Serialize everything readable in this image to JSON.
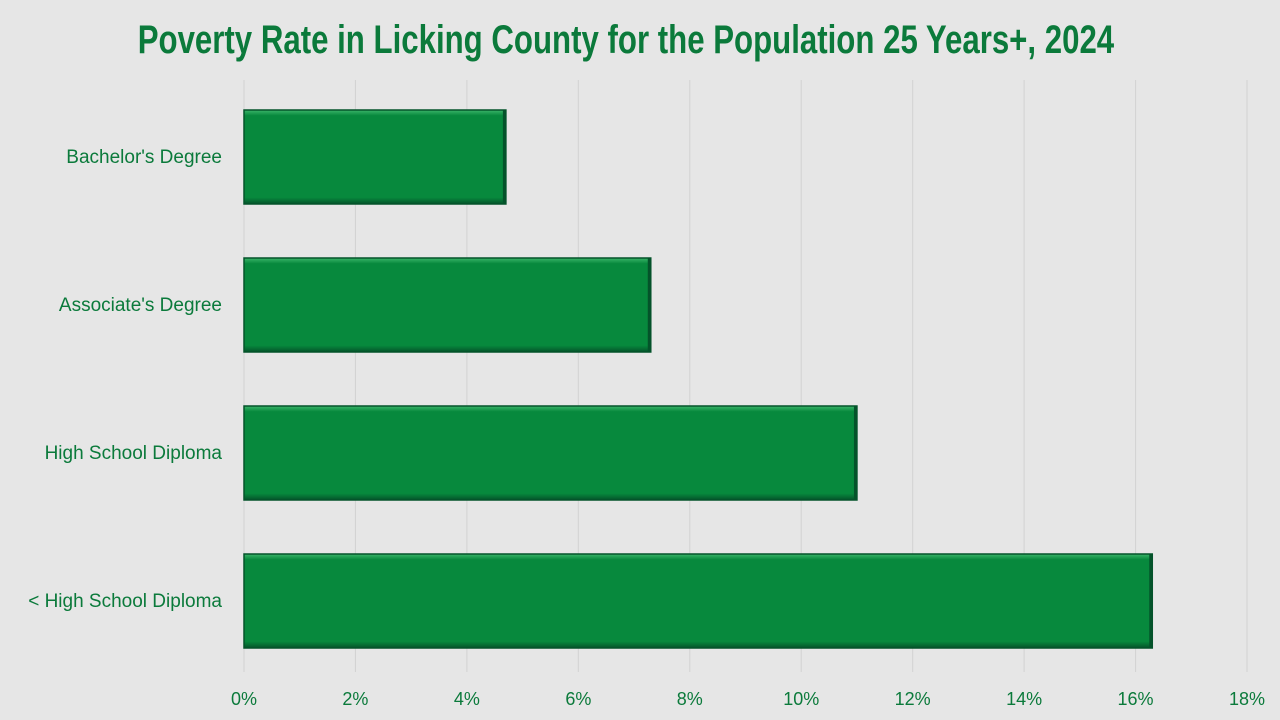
{
  "chart_data": {
    "type": "bar",
    "orientation": "horizontal",
    "title": "Poverty Rate in Licking County for the Population 25 Years+, 2024",
    "categories": [
      "Bachelor's Degree",
      "Associate's Degree",
      "High School Diploma",
      "< High School Diploma"
    ],
    "values": [
      4.7,
      7.3,
      11.0,
      16.3
    ],
    "xlabel": "",
    "ylabel": "",
    "xlim": [
      0,
      18
    ],
    "xticks": [
      0,
      2,
      4,
      6,
      8,
      10,
      12,
      14,
      16,
      18
    ],
    "tick_suffix": "%",
    "grid": true,
    "legend": "none",
    "colors": {
      "bar": "#07893d",
      "bar_dark": "#04532a",
      "bar_light": "#3cb56a",
      "text": "#0b7a3b",
      "grid": "#d2d2d2",
      "background": "#e6e6e6"
    }
  }
}
